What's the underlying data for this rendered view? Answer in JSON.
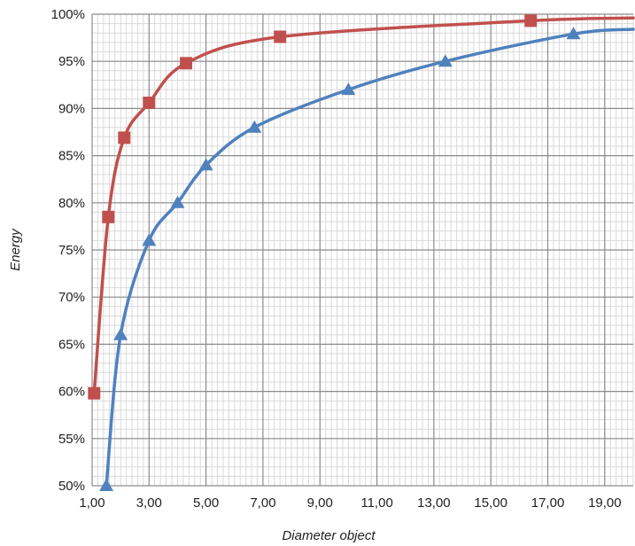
{
  "chart_data": {
    "type": "line",
    "title": "",
    "xlabel": "Diameter object",
    "ylabel": "Energy",
    "xlim": [
      1.0,
      20.0
    ],
    "ylim": [
      50,
      100
    ],
    "grid": true,
    "legend": "none",
    "x_ticks": [
      {
        "value": 1,
        "label": "1,00"
      },
      {
        "value": 3,
        "label": "3,00"
      },
      {
        "value": 5,
        "label": "5,00"
      },
      {
        "value": 7,
        "label": "7,00"
      },
      {
        "value": 9,
        "label": "9,00"
      },
      {
        "value": 11,
        "label": "11,00"
      },
      {
        "value": 13,
        "label": "13,00"
      },
      {
        "value": 15,
        "label": "15,00"
      },
      {
        "value": 17,
        "label": "17,00"
      },
      {
        "value": 19,
        "label": "19,00"
      }
    ],
    "y_ticks": [
      {
        "value": 50,
        "label": "50%"
      },
      {
        "value": 55,
        "label": "55%"
      },
      {
        "value": 60,
        "label": "60%"
      },
      {
        "value": 65,
        "label": "65%"
      },
      {
        "value": 70,
        "label": "70%"
      },
      {
        "value": 75,
        "label": "75%"
      },
      {
        "value": 80,
        "label": "80%"
      },
      {
        "value": 85,
        "label": "85%"
      },
      {
        "value": 90,
        "label": "90%"
      },
      {
        "value": 95,
        "label": "95%"
      },
      {
        "value": 100,
        "label": "100%"
      }
    ],
    "series": [
      {
        "color": "#c0504d",
        "marker": "square",
        "points": [
          {
            "x": 1.07,
            "y": 59.8
          },
          {
            "x": 1.57,
            "y": 78.5
          },
          {
            "x": 2.13,
            "y": 86.9
          },
          {
            "x": 3.0,
            "y": 90.6
          },
          {
            "x": 4.3,
            "y": 94.8
          },
          {
            "x": 7.6,
            "y": 97.6
          },
          {
            "x": 16.4,
            "y": 99.3
          }
        ],
        "end": {
          "x": 20.0,
          "y": 99.6
        }
      },
      {
        "color": "#4f81bd",
        "marker": "triangle",
        "points": [
          {
            "x": 1.5,
            "y": 50.0
          },
          {
            "x": 2.0,
            "y": 66.0
          },
          {
            "x": 3.0,
            "y": 76.0
          },
          {
            "x": 4.0,
            "y": 80.0
          },
          {
            "x": 5.0,
            "y": 84.0
          },
          {
            "x": 6.7,
            "y": 88.0
          },
          {
            "x": 10.0,
            "y": 92.0
          },
          {
            "x": 13.4,
            "y": 95.0
          },
          {
            "x": 17.9,
            "y": 97.9
          }
        ],
        "end": {
          "x": 20.0,
          "y": 98.4
        }
      }
    ]
  }
}
